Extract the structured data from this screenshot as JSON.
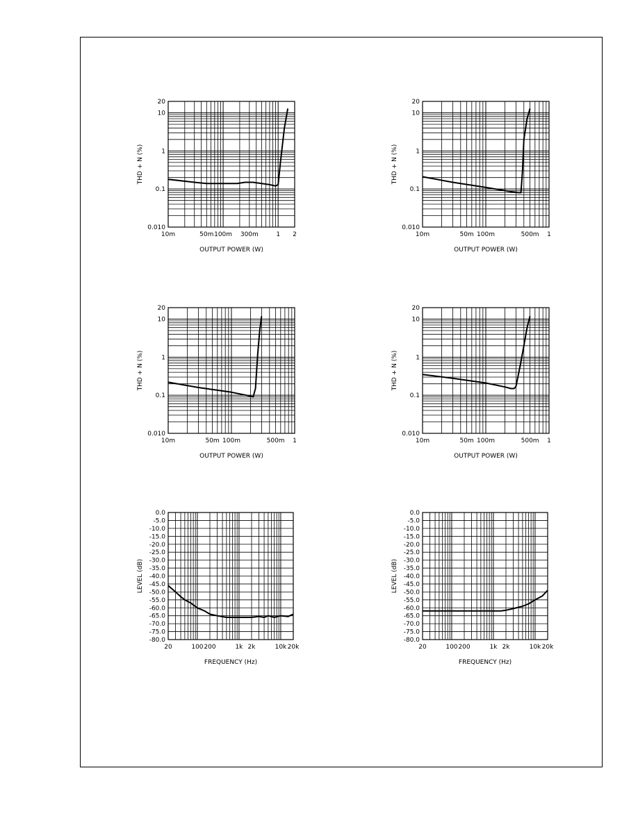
{
  "chart_data": [
    {
      "type": "line",
      "xscale": "log",
      "yscale": "log",
      "xlim": [
        0.01,
        2
      ],
      "ylim": [
        0.01,
        20
      ],
      "xticklabels": [
        {
          "v": 0.01,
          "t": "10m"
        },
        {
          "v": 0.05,
          "t": "50m"
        },
        {
          "v": 0.1,
          "t": "100m"
        },
        {
          "v": 0.3,
          "t": "300m"
        },
        {
          "v": 1,
          "t": "1"
        },
        {
          "v": 2,
          "t": "2"
        }
      ],
      "yticklabels": [
        {
          "v": 20,
          "t": "20"
        },
        {
          "v": 10,
          "t": "10"
        },
        {
          "v": 1,
          "t": "1"
        },
        {
          "v": 0.1,
          "t": "0.1"
        },
        {
          "v": 0.01,
          "t": "0.010"
        }
      ],
      "xlabel": "OUTPUT POWER (W)",
      "ylabel": "THD + N (%)",
      "series": [
        {
          "x": [
            0.01,
            0.03,
            0.05,
            0.1,
            0.18,
            0.25,
            0.35,
            0.5,
            0.7,
            0.9,
            1.0,
            1.1,
            1.3,
            1.5
          ],
          "y": [
            0.18,
            0.15,
            0.14,
            0.14,
            0.14,
            0.15,
            0.15,
            0.14,
            0.13,
            0.12,
            0.13,
            0.5,
            4,
            13
          ]
        }
      ]
    },
    {
      "type": "line",
      "xscale": "log",
      "yscale": "log",
      "xlim": [
        0.01,
        1
      ],
      "ylim": [
        0.01,
        20
      ],
      "xticklabels": [
        {
          "v": 0.01,
          "t": "10m"
        },
        {
          "v": 0.05,
          "t": "50m"
        },
        {
          "v": 0.1,
          "t": "100m"
        },
        {
          "v": 0.5,
          "t": "500m"
        },
        {
          "v": 1,
          "t": "1"
        }
      ],
      "yticklabels": [
        {
          "v": 20,
          "t": "20"
        },
        {
          "v": 10,
          "t": "10"
        },
        {
          "v": 1,
          "t": "1"
        },
        {
          "v": 0.1,
          "t": "0.1"
        },
        {
          "v": 0.01,
          "t": "0.010"
        }
      ],
      "xlabel": "OUTPUT POWER (W)",
      "ylabel": "THD + N (%)",
      "series": [
        {
          "x": [
            0.01,
            0.03,
            0.1,
            0.25,
            0.33,
            0.36,
            0.38,
            0.4,
            0.45,
            0.5
          ],
          "y": [
            0.21,
            0.15,
            0.11,
            0.085,
            0.08,
            0.08,
            0.3,
            2,
            7,
            13
          ]
        }
      ]
    },
    {
      "type": "line",
      "xscale": "log",
      "yscale": "log",
      "xlim": [
        0.01,
        1
      ],
      "ylim": [
        0.01,
        20
      ],
      "xticklabels": [
        {
          "v": 0.01,
          "t": "10m"
        },
        {
          "v": 0.05,
          "t": "50m"
        },
        {
          "v": 0.1,
          "t": "100m"
        },
        {
          "v": 0.5,
          "t": "500m"
        },
        {
          "v": 1,
          "t": "1"
        }
      ],
      "yticklabels": [
        {
          "v": 20,
          "t": "20"
        },
        {
          "v": 10,
          "t": "10"
        },
        {
          "v": 1,
          "t": "1"
        },
        {
          "v": 0.1,
          "t": "0.1"
        },
        {
          "v": 0.01,
          "t": "0.010"
        }
      ],
      "xlabel": "OUTPUT POWER (W)",
      "ylabel": "THD + N (%)",
      "series": [
        {
          "x": [
            0.01,
            0.03,
            0.1,
            0.2,
            0.22,
            0.24,
            0.26,
            0.28,
            0.3
          ],
          "y": [
            0.22,
            0.16,
            0.12,
            0.095,
            0.09,
            0.15,
            1.2,
            5,
            12
          ]
        }
      ]
    },
    {
      "type": "line",
      "xscale": "log",
      "yscale": "log",
      "xlim": [
        0.01,
        1
      ],
      "ylim": [
        0.01,
        20
      ],
      "xticklabels": [
        {
          "v": 0.01,
          "t": "10m"
        },
        {
          "v": 0.05,
          "t": "50m"
        },
        {
          "v": 0.1,
          "t": "100m"
        },
        {
          "v": 0.5,
          "t": "500m"
        },
        {
          "v": 1,
          "t": "1"
        }
      ],
      "yticklabels": [
        {
          "v": 20,
          "t": "20"
        },
        {
          "v": 10,
          "t": "10"
        },
        {
          "v": 1,
          "t": "1"
        },
        {
          "v": 0.1,
          "t": "0.1"
        },
        {
          "v": 0.01,
          "t": "0.010"
        }
      ],
      "xlabel": "OUTPUT POWER (W)",
      "ylabel": "THD + N (%)",
      "series": [
        {
          "x": [
            0.01,
            0.03,
            0.1,
            0.2,
            0.25,
            0.28,
            0.3,
            0.35,
            0.4,
            0.45,
            0.5
          ],
          "y": [
            0.35,
            0.28,
            0.21,
            0.165,
            0.15,
            0.15,
            0.17,
            0.6,
            2,
            6,
            12
          ]
        }
      ]
    },
    {
      "type": "line",
      "xscale": "log",
      "yscale": "linear",
      "xlim": [
        20,
        20000
      ],
      "ylim": [
        -80,
        0
      ],
      "xticklabels": [
        {
          "v": 20,
          "t": "20"
        },
        {
          "v": 100,
          "t": "100"
        },
        {
          "v": 200,
          "t": "200"
        },
        {
          "v": 1000,
          "t": "1k"
        },
        {
          "v": 2000,
          "t": "2k"
        },
        {
          "v": 10000,
          "t": "10k"
        },
        {
          "v": 20000,
          "t": "20k"
        }
      ],
      "yticklabels": [
        {
          "v": 0,
          "t": "0.0"
        },
        {
          "v": -5,
          "t": "-5.0"
        },
        {
          "v": -10,
          "t": "-10.0"
        },
        {
          "v": -15,
          "t": "-15.0"
        },
        {
          "v": -20,
          "t": "-20.0"
        },
        {
          "v": -25,
          "t": "-25.0"
        },
        {
          "v": -30,
          "t": "-30.0"
        },
        {
          "v": -35,
          "t": "-35.0"
        },
        {
          "v": -40,
          "t": "-40.0"
        },
        {
          "v": -45,
          "t": "-45.0"
        },
        {
          "v": -50,
          "t": "-50.0"
        },
        {
          "v": -55,
          "t": "-55.0"
        },
        {
          "v": -60,
          "t": "-60.0"
        },
        {
          "v": -65,
          "t": "-65.0"
        },
        {
          "v": -70,
          "t": "-70.0"
        },
        {
          "v": -75,
          "t": "-75.0"
        },
        {
          "v": -80,
          "t": "-80.0"
        }
      ],
      "xlabel": "FREQUENCY (Hz)",
      "ylabel": "LEVEL (dB)",
      "series": [
        {
          "x": [
            20,
            30,
            40,
            50,
            70,
            100,
            150,
            200,
            300,
            500,
            700,
            1000,
            1500,
            2000,
            3000,
            4000,
            5000,
            7000,
            10000,
            15000,
            20000
          ],
          "y": [
            -46,
            -50,
            -53,
            -55,
            -57,
            -60,
            -62,
            -64,
            -65,
            -66,
            -66,
            -66,
            -66,
            -66,
            -65.5,
            -66,
            -65,
            -66,
            -65,
            -65.5,
            -64
          ]
        }
      ]
    },
    {
      "type": "line",
      "xscale": "log",
      "yscale": "linear",
      "xlim": [
        20,
        20000
      ],
      "ylim": [
        -80,
        0
      ],
      "xticklabels": [
        {
          "v": 20,
          "t": "20"
        },
        {
          "v": 100,
          "t": "100"
        },
        {
          "v": 200,
          "t": "200"
        },
        {
          "v": 1000,
          "t": "1k"
        },
        {
          "v": 2000,
          "t": "2k"
        },
        {
          "v": 10000,
          "t": "10k"
        },
        {
          "v": 20000,
          "t": "20k"
        }
      ],
      "yticklabels": [
        {
          "v": 0,
          "t": "0.0"
        },
        {
          "v": -5,
          "t": "-5.0"
        },
        {
          "v": -10,
          "t": "-10.0"
        },
        {
          "v": -15,
          "t": "-15.0"
        },
        {
          "v": -20,
          "t": "-20.0"
        },
        {
          "v": -25,
          "t": "-25.0"
        },
        {
          "v": -30,
          "t": "-30.0"
        },
        {
          "v": -35,
          "t": "-35.0"
        },
        {
          "v": -40,
          "t": "-40.0"
        },
        {
          "v": -45,
          "t": "-45.0"
        },
        {
          "v": -50,
          "t": "-50.0"
        },
        {
          "v": -55,
          "t": "-55.0"
        },
        {
          "v": -60,
          "t": "-60.0"
        },
        {
          "v": -65,
          "t": "-65.0"
        },
        {
          "v": -70,
          "t": "-70.0"
        },
        {
          "v": -75,
          "t": "-75.0"
        },
        {
          "v": -80,
          "t": "-80.0"
        }
      ],
      "xlabel": "FREQUENCY (Hz)",
      "ylabel": "LEVEL (dB)",
      "series": [
        {
          "x": [
            20,
            40,
            70,
            100,
            150,
            200,
            300,
            500,
            1000,
            1500,
            2000,
            3000,
            5000,
            7000,
            10000,
            15000,
            20000
          ],
          "y": [
            -62,
            -62,
            -62,
            -62,
            -62,
            -62,
            -62,
            -62,
            -62,
            -62,
            -61.5,
            -60.5,
            -59,
            -57.5,
            -55,
            -52.5,
            -49
          ]
        }
      ]
    }
  ]
}
